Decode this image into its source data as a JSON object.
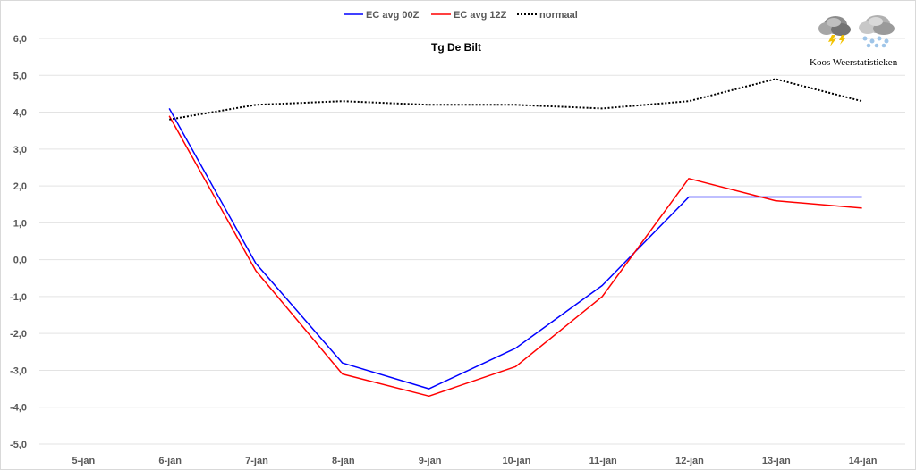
{
  "chart_data": {
    "type": "line",
    "title": "Tg De Bilt",
    "xlabel": "",
    "ylabel": "",
    "categories": [
      "5-jan",
      "6-jan",
      "7-jan",
      "8-jan",
      "9-jan",
      "10-jan",
      "11-jan",
      "12-jan",
      "13-jan",
      "14-jan"
    ],
    "ylim": [
      -5.0,
      6.0
    ],
    "yticks": [
      "6,0",
      "5,0",
      "4,0",
      "3,0",
      "2,0",
      "1,0",
      "0,0",
      "-1,0",
      "-2,0",
      "-3,0",
      "-4,0",
      "-5,0"
    ],
    "grid": true,
    "legend_position": "top",
    "series": [
      {
        "name": "EC avg 00Z",
        "color": "#0000ff",
        "style": "solid",
        "values": [
          null,
          4.1,
          -0.1,
          -2.8,
          -3.5,
          -2.4,
          -0.7,
          1.7,
          1.7,
          1.7
        ]
      },
      {
        "name": "EC avg 12Z",
        "color": "#ff0000",
        "style": "solid",
        "values": [
          null,
          3.9,
          -0.3,
          -3.1,
          -3.7,
          -2.9,
          -1.0,
          2.2,
          1.6,
          1.4
        ]
      },
      {
        "name": "normaal",
        "color": "#000000",
        "style": "dotted",
        "values": [
          null,
          3.8,
          4.2,
          4.3,
          4.2,
          4.2,
          4.1,
          4.3,
          4.9,
          4.3
        ]
      }
    ]
  },
  "branding": {
    "text": "Koos Weerstatistieken",
    "icons": [
      "thunderstorm-cloud-icon",
      "snow-cloud-icon"
    ]
  }
}
